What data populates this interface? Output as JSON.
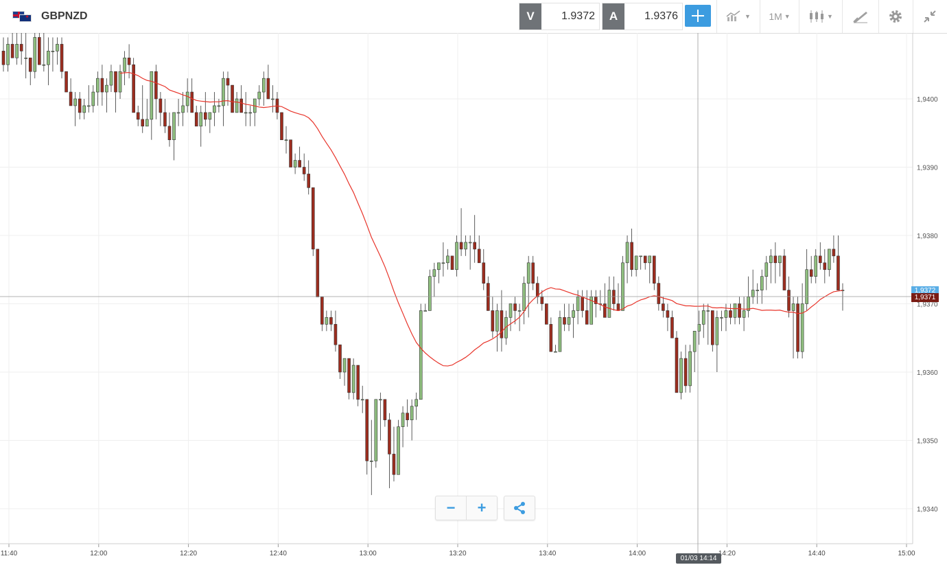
{
  "header": {
    "symbol": "GBPNZD",
    "bid_label": "V",
    "bid_value": "1.9372",
    "ask_label": "A",
    "ask_value": "1.9376",
    "interval_label": "1M",
    "icons": [
      "crosshair-icon",
      "compare-icon",
      "candlestick-icon",
      "drawing-icon",
      "gear-icon",
      "collapse-icon"
    ]
  },
  "colors": {
    "bull": "#8fbf7f",
    "bear": "#9d2d1f",
    "ma": "#e8342a",
    "accent": "#3c9ce0",
    "grid": "#efefef"
  },
  "chart_data": {
    "type": "candlestick",
    "title": "",
    "x_ticks": [
      "11:40",
      "12:00",
      "12:20",
      "12:40",
      "13:00",
      "13:20",
      "13:40",
      "14:00",
      "14:20",
      "14:40",
      "15:00"
    ],
    "y_ticks": [
      "1,9400",
      "1,9390",
      "1,9380",
      "1,9370",
      "1,9360",
      "1,9350",
      "1,9340"
    ],
    "ylim": [
      1.9335,
      1.941
    ],
    "current_bid_label": "1,9371",
    "current_ask_label": "1,9372",
    "crosshair_time_label": "01/03 14:14",
    "moving_average_line": true,
    "candles_ohlc": [
      [
        1.9407,
        1.9409,
        1.9404,
        1.9405
      ],
      [
        1.9405,
        1.9409,
        1.9404,
        1.9408
      ],
      [
        1.9408,
        1.941,
        1.9406,
        1.9406
      ],
      [
        1.9406,
        1.941,
        1.9405,
        1.9408
      ],
      [
        1.9408,
        1.941,
        1.9405,
        1.9407
      ],
      [
        1.9406,
        1.941,
        1.9403,
        1.9406
      ],
      [
        1.9406,
        1.9406,
        1.9402,
        1.9404
      ],
      [
        1.9404,
        1.941,
        1.9403,
        1.9409
      ],
      [
        1.9409,
        1.941,
        1.9405,
        1.9405
      ],
      [
        1.9405,
        1.941,
        1.9404,
        1.9405
      ],
      [
        1.9405,
        1.9409,
        1.9402,
        1.9407
      ],
      [
        1.9407,
        1.9409,
        1.9404,
        1.9407
      ],
      [
        1.9407,
        1.9409,
        1.9405,
        1.9408
      ],
      [
        1.9408,
        1.9409,
        1.9403,
        1.9404
      ],
      [
        1.9404,
        1.9403,
        1.9401,
        1.9401
      ],
      [
        1.9401,
        1.9403,
        1.9399,
        1.9399
      ],
      [
        1.9399,
        1.9401,
        1.9396,
        1.94
      ],
      [
        1.94,
        1.9401,
        1.9397,
        1.9398
      ],
      [
        1.9398,
        1.94,
        1.9397,
        1.9399
      ],
      [
        1.9399,
        1.9402,
        1.9398,
        1.9399
      ],
      [
        1.9399,
        1.9402,
        1.9398,
        1.9401
      ],
      [
        1.9401,
        1.9404,
        1.9399,
        1.9403
      ],
      [
        1.9403,
        1.9405,
        1.9399,
        1.9401
      ],
      [
        1.9401,
        1.9403,
        1.9398,
        1.9402
      ],
      [
        1.9402,
        1.9405,
        1.9401,
        1.9404
      ],
      [
        1.9404,
        1.9404,
        1.9398,
        1.9401
      ],
      [
        1.9401,
        1.9405,
        1.94,
        1.9404
      ],
      [
        1.9404,
        1.9407,
        1.9402,
        1.9406
      ],
      [
        1.9406,
        1.9408,
        1.9403,
        1.9405
      ],
      [
        1.9405,
        1.9406,
        1.9398,
        1.9398
      ],
      [
        1.9398,
        1.9399,
        1.9396,
        1.9397
      ],
      [
        1.9397,
        1.9402,
        1.9395,
        1.9396
      ],
      [
        1.9396,
        1.94,
        1.9396,
        1.9397
      ],
      [
        1.9397,
        1.9404,
        1.9394,
        1.9404
      ],
      [
        1.9404,
        1.9405,
        1.9397,
        1.94
      ],
      [
        1.94,
        1.9401,
        1.9396,
        1.9398
      ],
      [
        1.9398,
        1.94,
        1.9395,
        1.9396
      ],
      [
        1.9396,
        1.9398,
        1.9393,
        1.9394
      ],
      [
        1.9394,
        1.9398,
        1.9391,
        1.9398
      ],
      [
        1.9398,
        1.94,
        1.9396,
        1.9398
      ],
      [
        1.9398,
        1.9401,
        1.9396,
        1.9399
      ],
      [
        1.9399,
        1.9403,
        1.9398,
        1.9401
      ],
      [
        1.9401,
        1.9403,
        1.9398,
        1.9398
      ],
      [
        1.9398,
        1.9399,
        1.9396,
        1.9396
      ],
      [
        1.9396,
        1.9399,
        1.9393,
        1.9398
      ],
      [
        1.9398,
        1.9401,
        1.9396,
        1.9397
      ],
      [
        1.9397,
        1.9398,
        1.9395,
        1.9398
      ],
      [
        1.9398,
        1.9401,
        1.9396,
        1.9399
      ],
      [
        1.9399,
        1.94,
        1.9398,
        1.9399
      ],
      [
        1.9399,
        1.9404,
        1.9396,
        1.9403
      ],
      [
        1.9403,
        1.9404,
        1.9399,
        1.9402
      ],
      [
        1.9402,
        1.9402,
        1.9398,
        1.9398
      ],
      [
        1.9398,
        1.9401,
        1.9398,
        1.94
      ],
      [
        1.94,
        1.9402,
        1.9398,
        1.9398
      ],
      [
        1.9398,
        1.9401,
        1.9396,
        1.9398
      ],
      [
        1.9398,
        1.9399,
        1.9396,
        1.9398
      ],
      [
        1.9398,
        1.94,
        1.9396,
        1.94
      ],
      [
        1.94,
        1.9402,
        1.9399,
        1.9401
      ],
      [
        1.9401,
        1.9404,
        1.9399,
        1.9403
      ],
      [
        1.9403,
        1.9405,
        1.9401,
        1.94
      ],
      [
        1.94,
        1.9402,
        1.9398,
        1.94
      ],
      [
        1.94,
        1.9401,
        1.9397,
        1.9398
      ],
      [
        1.9398,
        1.9398,
        1.9394,
        1.9394
      ],
      [
        1.9394,
        1.9396,
        1.9392,
        1.9394
      ],
      [
        1.9394,
        1.9394,
        1.939,
        1.939
      ],
      [
        1.939,
        1.9392,
        1.9389,
        1.9391
      ],
      [
        1.9391,
        1.9393,
        1.939,
        1.939
      ],
      [
        1.939,
        1.9392,
        1.9388,
        1.9389
      ],
      [
        1.9389,
        1.9391,
        1.9386,
        1.9387
      ],
      [
        1.9387,
        1.9387,
        1.9377,
        1.9378
      ],
      [
        1.9378,
        1.9378,
        1.9371,
        1.9371
      ],
      [
        1.9371,
        1.9371,
        1.9366,
        1.9367
      ],
      [
        1.9367,
        1.9369,
        1.9366,
        1.9368
      ],
      [
        1.9368,
        1.9369,
        1.9366,
        1.9367
      ],
      [
        1.9367,
        1.9369,
        1.9363,
        1.9364
      ],
      [
        1.9364,
        1.9364,
        1.9359,
        1.936
      ],
      [
        1.936,
        1.9362,
        1.9358,
        1.9362
      ],
      [
        1.9362,
        1.9362,
        1.9356,
        1.9357
      ],
      [
        1.9357,
        1.9362,
        1.9356,
        1.9361
      ],
      [
        1.9361,
        1.9361,
        1.9355,
        1.9356
      ],
      [
        1.9356,
        1.9358,
        1.9354,
        1.9356
      ],
      [
        1.9356,
        1.9356,
        1.9345,
        1.9347
      ],
      [
        1.9347,
        1.9353,
        1.9342,
        1.9347
      ],
      [
        1.9347,
        1.9356,
        1.9346,
        1.9356
      ],
      [
        1.9356,
        1.9357,
        1.935,
        1.9356
      ],
      [
        1.9356,
        1.9356,
        1.9352,
        1.9353
      ],
      [
        1.9353,
        1.9354,
        1.9343,
        1.9348
      ],
      [
        1.9348,
        1.9352,
        1.9344,
        1.9345
      ],
      [
        1.9345,
        1.9353,
        1.9345,
        1.9352
      ],
      [
        1.9352,
        1.9355,
        1.9349,
        1.9354
      ],
      [
        1.9354,
        1.9356,
        1.9352,
        1.9353
      ],
      [
        1.9353,
        1.9356,
        1.935,
        1.9355
      ],
      [
        1.9355,
        1.9357,
        1.9353,
        1.9356
      ],
      [
        1.9356,
        1.937,
        1.9356,
        1.9369
      ],
      [
        1.9369,
        1.937,
        1.9369,
        1.9369
      ],
      [
        1.9369,
        1.9375,
        1.9369,
        1.9374
      ],
      [
        1.9374,
        1.9376,
        1.9371,
        1.9375
      ],
      [
        1.9375,
        1.9376,
        1.9373,
        1.9376
      ],
      [
        1.9376,
        1.9379,
        1.9374,
        1.9376
      ],
      [
        1.9376,
        1.9378,
        1.9375,
        1.9377
      ],
      [
        1.9377,
        1.9377,
        1.9375,
        1.9375
      ],
      [
        1.9375,
        1.938,
        1.9374,
        1.9379
      ],
      [
        1.9379,
        1.9384,
        1.9377,
        1.9378
      ],
      [
        1.9378,
        1.938,
        1.9377,
        1.9379
      ],
      [
        1.9379,
        1.938,
        1.9375,
        1.9379
      ],
      [
        1.9379,
        1.9383,
        1.9376,
        1.9378
      ],
      [
        1.9378,
        1.938,
        1.9376,
        1.9376
      ],
      [
        1.9376,
        1.9378,
        1.9372,
        1.9373
      ],
      [
        1.9373,
        1.9374,
        1.9369,
        1.9369
      ],
      [
        1.9369,
        1.9371,
        1.9365,
        1.9366
      ],
      [
        1.9366,
        1.937,
        1.9363,
        1.9369
      ],
      [
        1.9369,
        1.9372,
        1.9363,
        1.9365
      ],
      [
        1.9365,
        1.9369,
        1.9364,
        1.9368
      ],
      [
        1.9368,
        1.937,
        1.9366,
        1.937
      ],
      [
        1.937,
        1.9371,
        1.9367,
        1.9369
      ],
      [
        1.9369,
        1.937,
        1.9366,
        1.9369
      ],
      [
        1.9369,
        1.9374,
        1.9367,
        1.9373
      ],
      [
        1.9373,
        1.9377,
        1.9368,
        1.9376
      ],
      [
        1.9376,
        1.9377,
        1.9372,
        1.9373
      ],
      [
        1.9373,
        1.9374,
        1.937,
        1.9371
      ],
      [
        1.9371,
        1.9372,
        1.9369,
        1.937
      ],
      [
        1.937,
        1.9369,
        1.9367,
        1.9367
      ],
      [
        1.9367,
        1.9368,
        1.9363,
        1.9363
      ],
      [
        1.9363,
        1.9364,
        1.9363,
        1.9363
      ],
      [
        1.9363,
        1.9369,
        1.9363,
        1.9368
      ],
      [
        1.9368,
        1.937,
        1.9366,
        1.9367
      ],
      [
        1.9367,
        1.937,
        1.9366,
        1.9368
      ],
      [
        1.9368,
        1.937,
        1.9365,
        1.9369
      ],
      [
        1.9369,
        1.9372,
        1.9367,
        1.9371
      ],
      [
        1.9371,
        1.9372,
        1.9368,
        1.9369
      ],
      [
        1.9369,
        1.9372,
        1.9367,
        1.9367
      ],
      [
        1.9367,
        1.9372,
        1.9367,
        1.9371
      ],
      [
        1.9371,
        1.9372,
        1.9368,
        1.937
      ],
      [
        1.937,
        1.9372,
        1.9369,
        1.937
      ],
      [
        1.937,
        1.9373,
        1.9369,
        1.9368
      ],
      [
        1.9368,
        1.9374,
        1.9368,
        1.9372
      ],
      [
        1.9372,
        1.9374,
        1.9369,
        1.937
      ],
      [
        1.937,
        1.9373,
        1.9369,
        1.9369
      ],
      [
        1.9369,
        1.9377,
        1.9369,
        1.9376
      ],
      [
        1.9376,
        1.938,
        1.9373,
        1.9379
      ],
      [
        1.9379,
        1.9381,
        1.9374,
        1.9375
      ],
      [
        1.9375,
        1.9377,
        1.9374,
        1.9377
      ],
      [
        1.9377,
        1.9377,
        1.9375,
        1.9377
      ],
      [
        1.9377,
        1.9376,
        1.9375,
        1.9376
      ],
      [
        1.9376,
        1.9377,
        1.9373,
        1.9377
      ],
      [
        1.9377,
        1.9377,
        1.9372,
        1.9373
      ],
      [
        1.9373,
        1.9374,
        1.9369,
        1.937
      ],
      [
        1.937,
        1.9371,
        1.9368,
        1.9369
      ],
      [
        1.9369,
        1.937,
        1.9366,
        1.9368
      ],
      [
        1.9368,
        1.9369,
        1.9365,
        1.9365
      ],
      [
        1.9365,
        1.9366,
        1.9357,
        1.9357
      ],
      [
        1.9357,
        1.9363,
        1.9356,
        1.9362
      ],
      [
        1.9362,
        1.9364,
        1.9357,
        1.9358
      ],
      [
        1.9358,
        1.9364,
        1.9357,
        1.9363
      ],
      [
        1.9363,
        1.9366,
        1.936,
        1.9366
      ],
      [
        1.9366,
        1.9369,
        1.9364,
        1.9367
      ],
      [
        1.9367,
        1.937,
        1.9365,
        1.9369
      ],
      [
        1.9369,
        1.937,
        1.9364,
        1.9369
      ],
      [
        1.9369,
        1.9369,
        1.9363,
        1.9364
      ],
      [
        1.9364,
        1.9369,
        1.936,
        1.9368
      ],
      [
        1.9368,
        1.9369,
        1.9366,
        1.9368
      ],
      [
        1.9368,
        1.937,
        1.9366,
        1.9369
      ],
      [
        1.9369,
        1.937,
        1.9367,
        1.9368
      ],
      [
        1.9368,
        1.937,
        1.9367,
        1.937
      ],
      [
        1.937,
        1.9371,
        1.9367,
        1.9368
      ],
      [
        1.9368,
        1.9371,
        1.9366,
        1.9369
      ],
      [
        1.9369,
        1.9374,
        1.9368,
        1.9371
      ],
      [
        1.9371,
        1.9375,
        1.937,
        1.9372
      ],
      [
        1.9372,
        1.9373,
        1.937,
        1.9372
      ],
      [
        1.9372,
        1.9375,
        1.937,
        1.9374
      ],
      [
        1.9374,
        1.9377,
        1.9372,
        1.9376
      ],
      [
        1.9376,
        1.9378,
        1.9373,
        1.9377
      ],
      [
        1.9377,
        1.9379,
        1.9373,
        1.9376
      ],
      [
        1.9376,
        1.9377,
        1.9374,
        1.9377
      ],
      [
        1.9377,
        1.9378,
        1.9372,
        1.9372
      ],
      [
        1.9372,
        1.9374,
        1.9368,
        1.9369
      ],
      [
        1.9369,
        1.9371,
        1.9362,
        1.937
      ],
      [
        1.937,
        1.9371,
        1.9362,
        1.9363
      ],
      [
        1.9363,
        1.9373,
        1.9362,
        1.937
      ],
      [
        1.937,
        1.9378,
        1.9369,
        1.9375
      ],
      [
        1.9375,
        1.9377,
        1.9373,
        1.9374
      ],
      [
        1.9374,
        1.9378,
        1.9373,
        1.9377
      ],
      [
        1.9377,
        1.9379,
        1.9375,
        1.9376
      ],
      [
        1.9376,
        1.9378,
        1.9373,
        1.9375
      ],
      [
        1.9375,
        1.9378,
        1.9374,
        1.9378
      ],
      [
        1.9378,
        1.938,
        1.9376,
        1.9377
      ],
      [
        1.9377,
        1.938,
        1.9372,
        1.9372
      ],
      [
        1.9372,
        1.9373,
        1.9369,
        1.9372
      ]
    ]
  }
}
